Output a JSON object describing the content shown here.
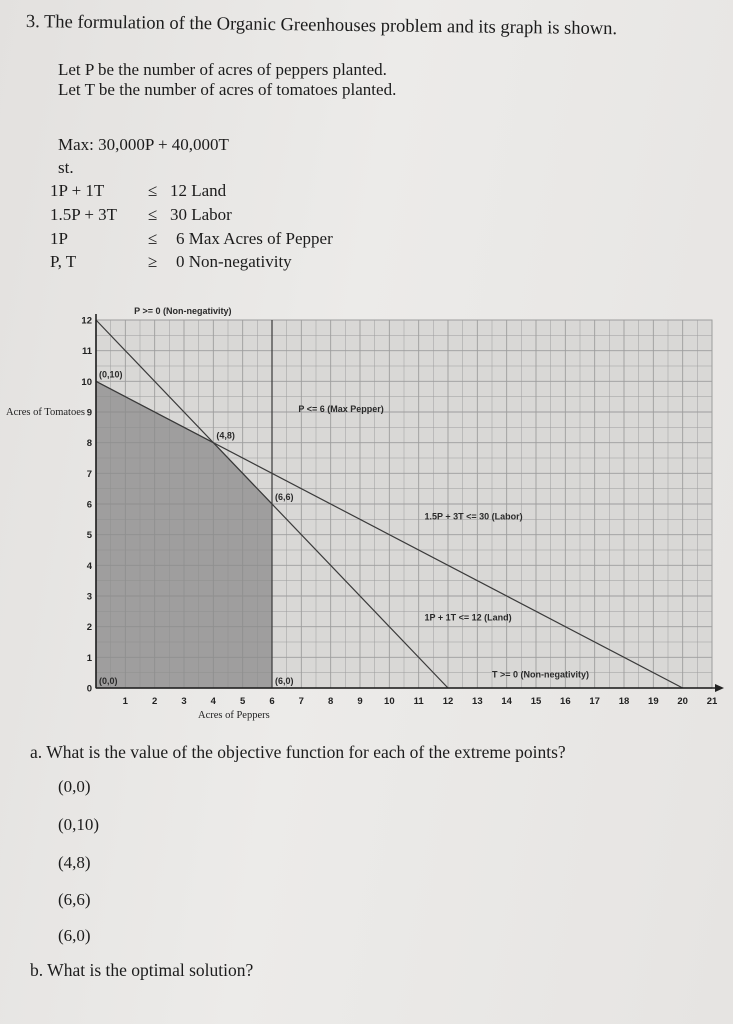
{
  "question": {
    "title": "3. The formulation of the Organic Greenhouses problem and its graph is shown.",
    "let_p": "Let P be the number of acres of peppers planted.",
    "let_t": "Let T be the number of acres of tomatoes planted."
  },
  "formulation": {
    "objective": "Max: 30,000P + 40,000T",
    "st": "st.",
    "constraints": [
      {
        "lhs": "1P + 1T",
        "op": "≤",
        "rhs": "12 Land"
      },
      {
        "lhs": "1.5P + 3T",
        "op": "≤",
        "rhs": "30 Labor"
      },
      {
        "lhs": "1P",
        "op": "≤",
        "rhs": "6 Max Acres of Pepper"
      },
      {
        "lhs": "P, T",
        "op": "≥",
        "rhs": "0 Non-negativity"
      }
    ]
  },
  "chart_data": {
    "type": "line",
    "xlabel": "Acres of Peppers",
    "ylabel": "Acres of Tomatoes",
    "xlim": [
      0,
      21
    ],
    "ylim": [
      0,
      12
    ],
    "x_ticks": [
      "1",
      "2",
      "3",
      "4",
      "5",
      "6",
      "7",
      "8",
      "9",
      "10",
      "11",
      "12",
      "13",
      "14",
      "15",
      "16",
      "17",
      "18",
      "19",
      "20",
      "21"
    ],
    "y_ticks": [
      "12",
      "11",
      "10",
      "9",
      "8",
      "7",
      "6",
      "5",
      "4",
      "3",
      "2",
      "1",
      "0"
    ],
    "feasible_region": [
      [
        0,
        0
      ],
      [
        0,
        10
      ],
      [
        4,
        8
      ],
      [
        6,
        6
      ],
      [
        6,
        0
      ]
    ],
    "constraint_lines": [
      {
        "name": "P >= 0 (Non-negativity)",
        "points": [
          [
            0,
            0
          ],
          [
            0,
            12
          ]
        ]
      },
      {
        "name": "P <= 6 (Max Pepper)",
        "points": [
          [
            6,
            0
          ],
          [
            6,
            12
          ]
        ]
      },
      {
        "name": "1.5P + 3T <= 30 (Labor)",
        "points": [
          [
            0,
            10
          ],
          [
            20,
            0
          ]
        ]
      },
      {
        "name": "1P + 1T <= 12 (Land)",
        "points": [
          [
            0,
            12
          ],
          [
            12,
            0
          ]
        ]
      },
      {
        "name": "T >= 0 (Non-negativity)",
        "points": [
          [
            0,
            0
          ],
          [
            21,
            0
          ]
        ]
      }
    ],
    "line_labels": [
      {
        "text": "P >= 0 (Non-negativity)",
        "at": [
          1.3,
          12.2
        ]
      },
      {
        "text": "P <= 6 (Max Pepper)",
        "at": [
          6.9,
          9.0
        ]
      },
      {
        "text": "1.5P + 3T <= 30 (Labor)",
        "at": [
          11.2,
          5.5
        ]
      },
      {
        "text": "1P + 1T <= 12 (Land)",
        "at": [
          11.2,
          2.2
        ]
      },
      {
        "text": "T >= 0 (Non-negativity)",
        "at": [
          13.5,
          0.35
        ]
      }
    ],
    "point_labels": [
      {
        "text": "(0,0)",
        "at": [
          0,
          0
        ]
      },
      {
        "text": "(0,10)",
        "at": [
          0,
          10
        ]
      },
      {
        "text": "(4,8)",
        "at": [
          4,
          8
        ]
      },
      {
        "text": "(6,6)",
        "at": [
          6,
          6
        ]
      },
      {
        "text": "(6,0)",
        "at": [
          6,
          0
        ]
      }
    ],
    "colors": {
      "feasible": "#8b8b8b",
      "grid": "#9d9d9d",
      "line": "#3a3a3a"
    }
  },
  "part_a": {
    "question": "a. What is the value of the objective function for each of the extreme points?",
    "points": [
      "(0,0)",
      "(0,10)",
      "(4,8)",
      "(6,6)",
      "(6,0)"
    ]
  },
  "part_b": {
    "question": "b. What is the optimal solution?"
  }
}
